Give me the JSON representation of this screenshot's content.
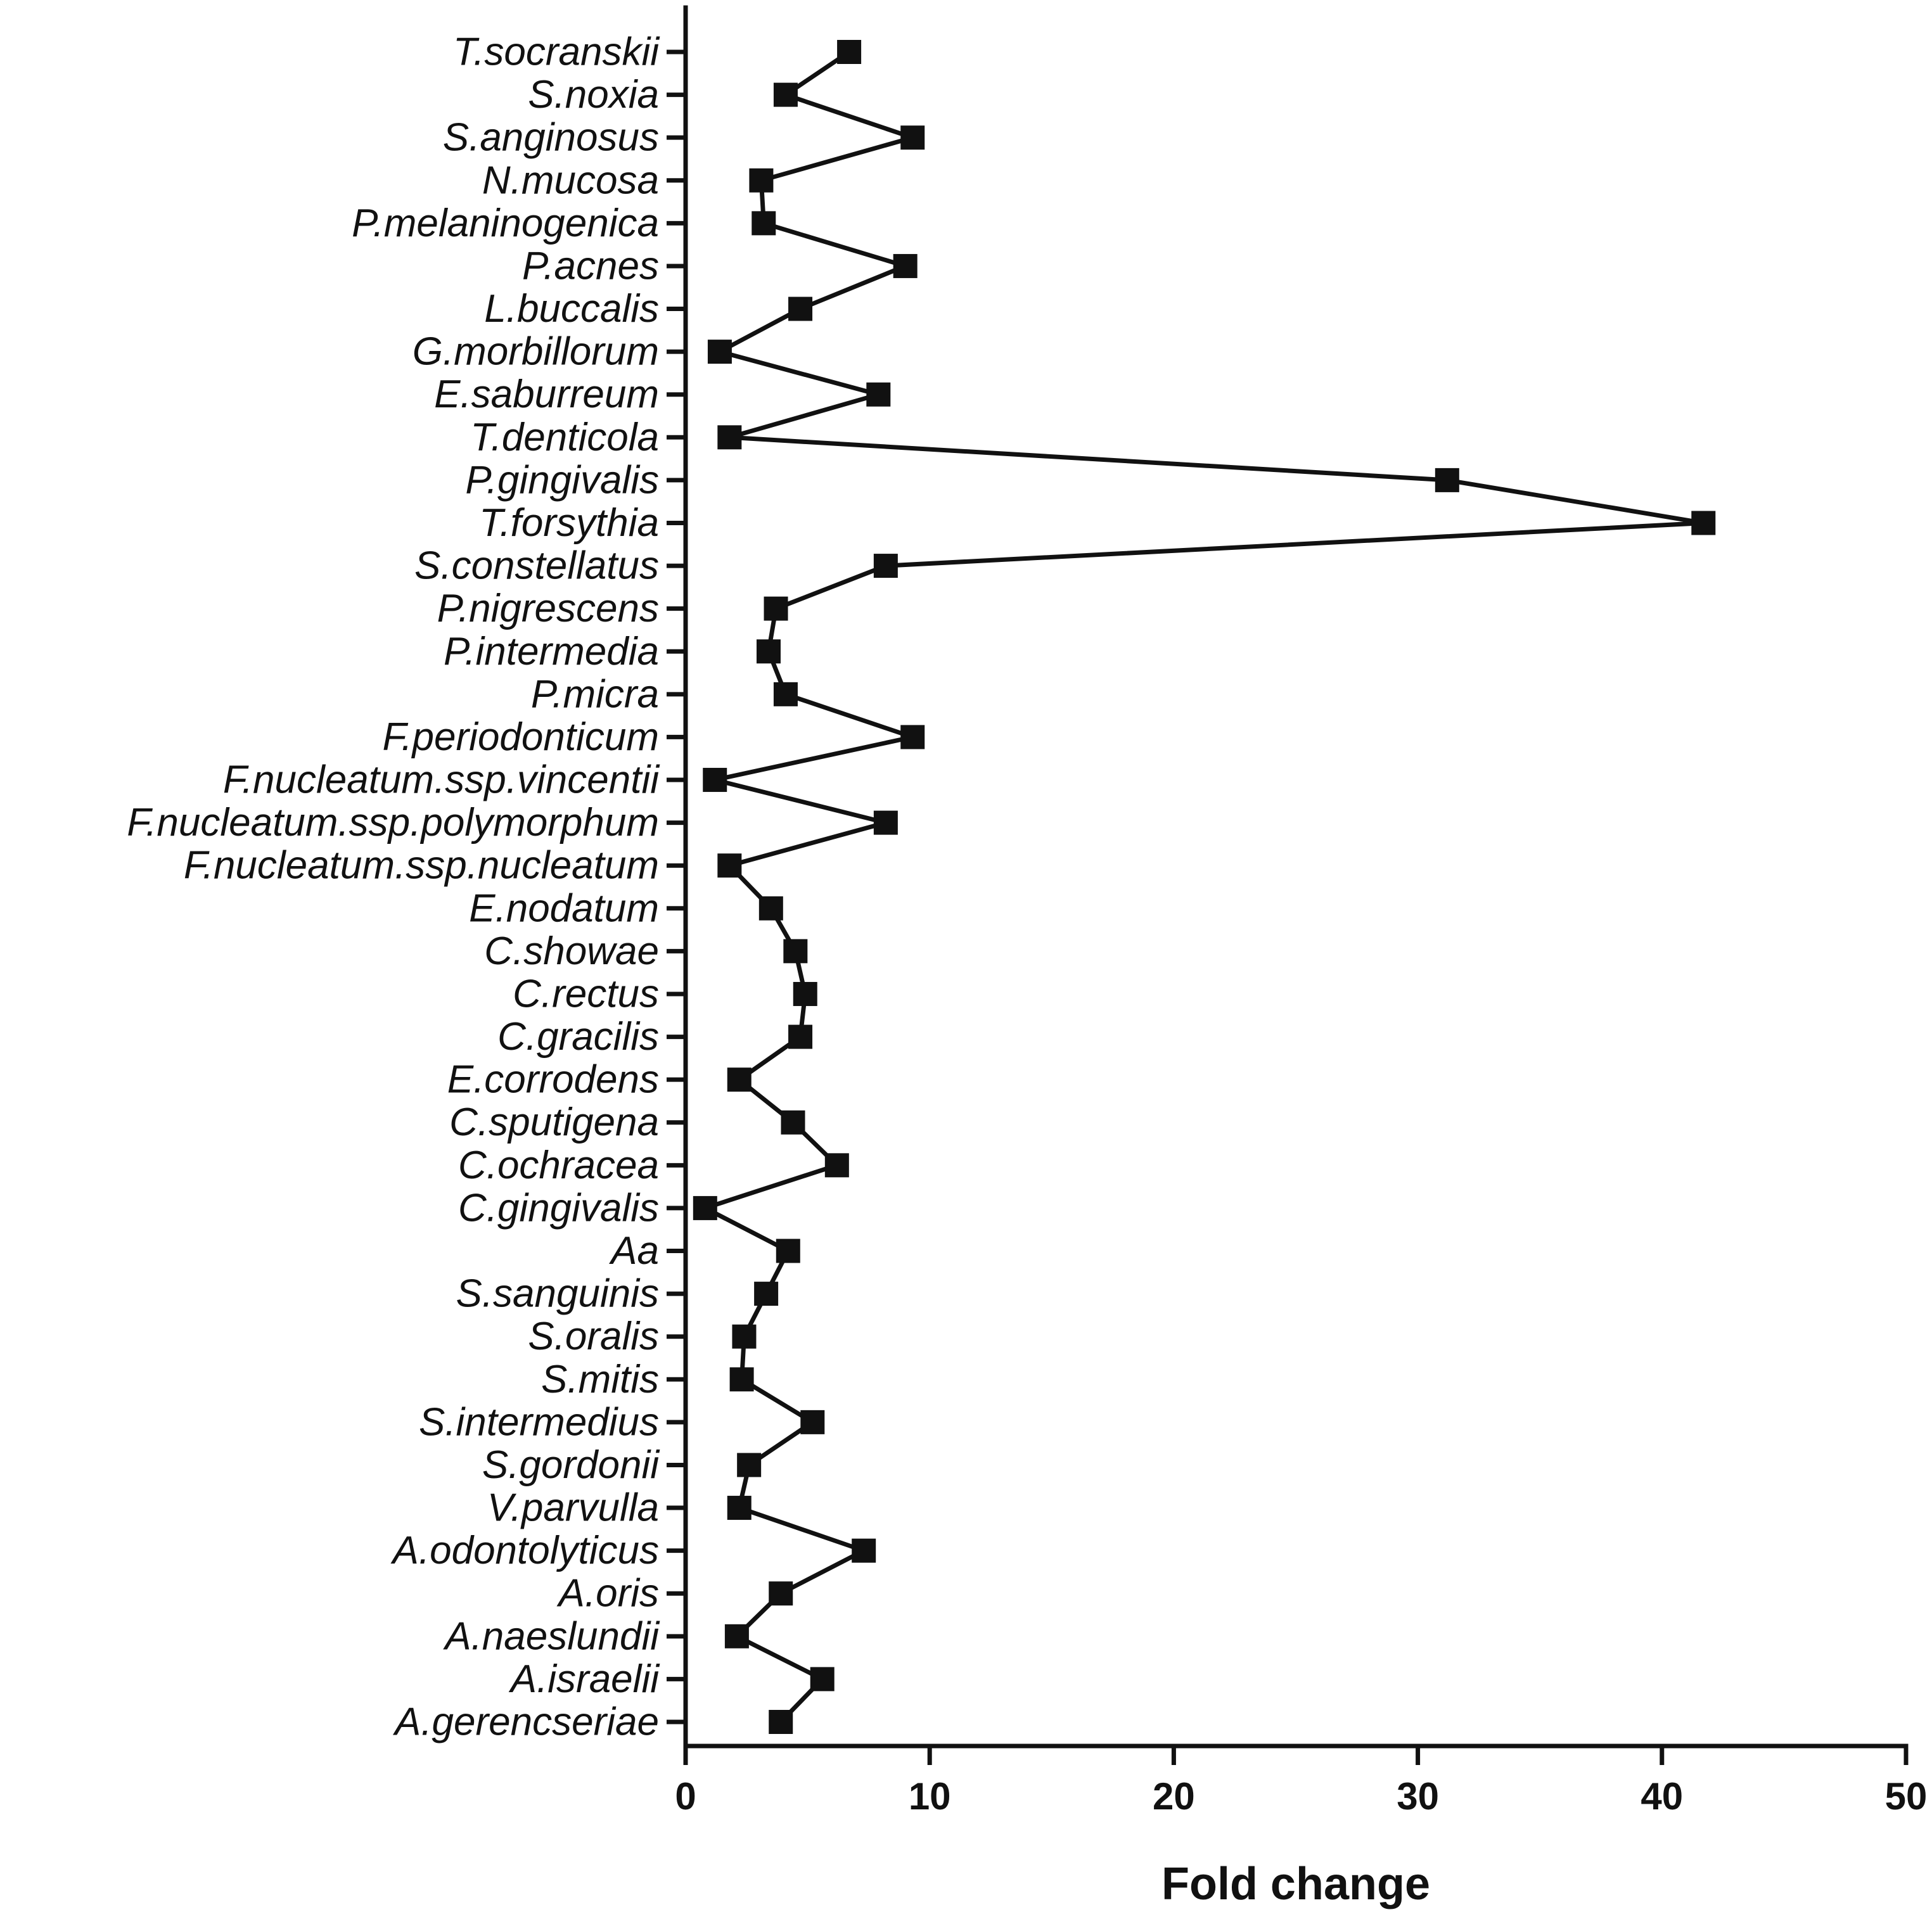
{
  "chart_data": {
    "type": "line",
    "orientation": "horizontal",
    "title": "",
    "xlabel": "Fold change",
    "ylabel": "",
    "xlim": [
      0,
      50
    ],
    "xticks": [
      0,
      10,
      20,
      30,
      40,
      50
    ],
    "grid": false,
    "marker": "square",
    "line_color": "#111111",
    "categories": [
      "T.socranskii",
      "S.noxia",
      "S.anginosus",
      "N.mucosa",
      "P.melaninogenica",
      "P.acnes",
      "L.buccalis",
      "G.morbillorum",
      "E.saburreum",
      "T.denticola",
      "P.gingivalis",
      "T.forsythia",
      "S.constellatus",
      "P.nigrescens",
      "P.intermedia",
      "P.micra",
      "F.periodonticum",
      "F.nucleatum.ssp.vincentii",
      "F.nucleatum.ssp.polymorphum",
      "F.nucleatum.ssp.nucleatum",
      "E.nodatum",
      "C.showae",
      "C.rectus",
      "C.gracilis",
      "E.corrodens",
      "C.sputigena",
      "C.ochracea",
      "C.gingivalis",
      "Aa",
      "S.sanguinis",
      "S.oralis",
      "S.mitis",
      "S.intermedius",
      "S.gordonii",
      "V.parvulla",
      "A.odontolyticus",
      "A.oris",
      "A.naeslundii",
      "A.israelii",
      "A.gerencseriae"
    ],
    "values": [
      6.7,
      4.1,
      9.3,
      3.1,
      3.2,
      9.0,
      4.7,
      1.4,
      7.9,
      1.8,
      31.2,
      41.7,
      8.2,
      3.7,
      3.4,
      4.1,
      9.3,
      1.2,
      8.2,
      1.8,
      3.5,
      4.5,
      4.9,
      4.7,
      2.2,
      4.4,
      6.2,
      0.8,
      4.2,
      3.3,
      2.4,
      2.3,
      5.2,
      2.6,
      2.2,
      7.3,
      3.9,
      2.1,
      5.6,
      3.9
    ]
  }
}
